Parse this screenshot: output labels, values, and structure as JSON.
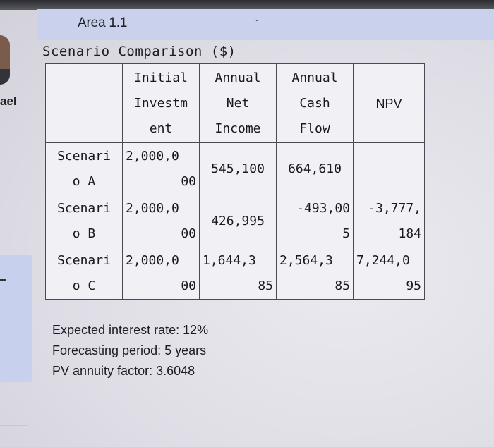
{
  "sidebar": {
    "name_fragment": "ael"
  },
  "header": {
    "title": "Area 1.1"
  },
  "table": {
    "title": "Scenario Comparison ($)",
    "columns": [
      [
        "Initial",
        "Investm",
        "ent"
      ],
      [
        "Annual",
        "Net",
        "Income"
      ],
      [
        "Annual",
        "Cash",
        "Flow"
      ],
      [
        "NPV"
      ]
    ],
    "rows": [
      {
        "label": [
          "Scenari",
          "o A"
        ],
        "initial": [
          "2,000,0",
          "00"
        ],
        "net_income": "545,100",
        "cash_flow": "664,610",
        "npv": [
          "",
          ""
        ]
      },
      {
        "label": [
          "Scenari",
          "o B"
        ],
        "initial": [
          "2,000,0",
          "00"
        ],
        "net_income": "426,995",
        "cash_flow": [
          "-493,00",
          "5"
        ],
        "npv": [
          "-3,777,",
          "184"
        ]
      },
      {
        "label": [
          "Scenari",
          "o C"
        ],
        "initial": [
          "2,000,0",
          "00"
        ],
        "net_income": [
          "1,644,3",
          "85"
        ],
        "cash_flow": [
          "2,564,3",
          "85"
        ],
        "npv": [
          "7,244,0",
          "95"
        ]
      }
    ]
  },
  "notes": {
    "interest": "Expected interest rate: 12%",
    "period": "Forecasting period: 5 years",
    "annuity": "PV annuity factor: 3.6048"
  }
}
